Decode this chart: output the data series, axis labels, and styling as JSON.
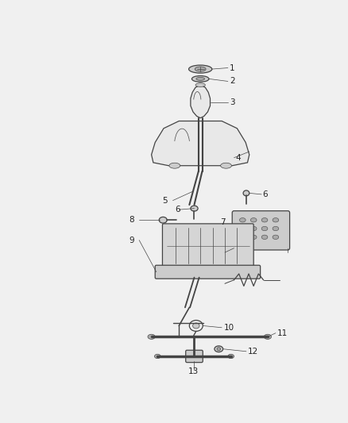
{
  "bg_color": "#f0f0f0",
  "line_color": "#444444",
  "fill_light": "#e8e8e8",
  "fill_mid": "#cccccc",
  "fill_dark": "#aaaaaa",
  "label_fs": 7.5,
  "fig_width": 4.38,
  "fig_height": 5.33,
  "dpi": 100
}
